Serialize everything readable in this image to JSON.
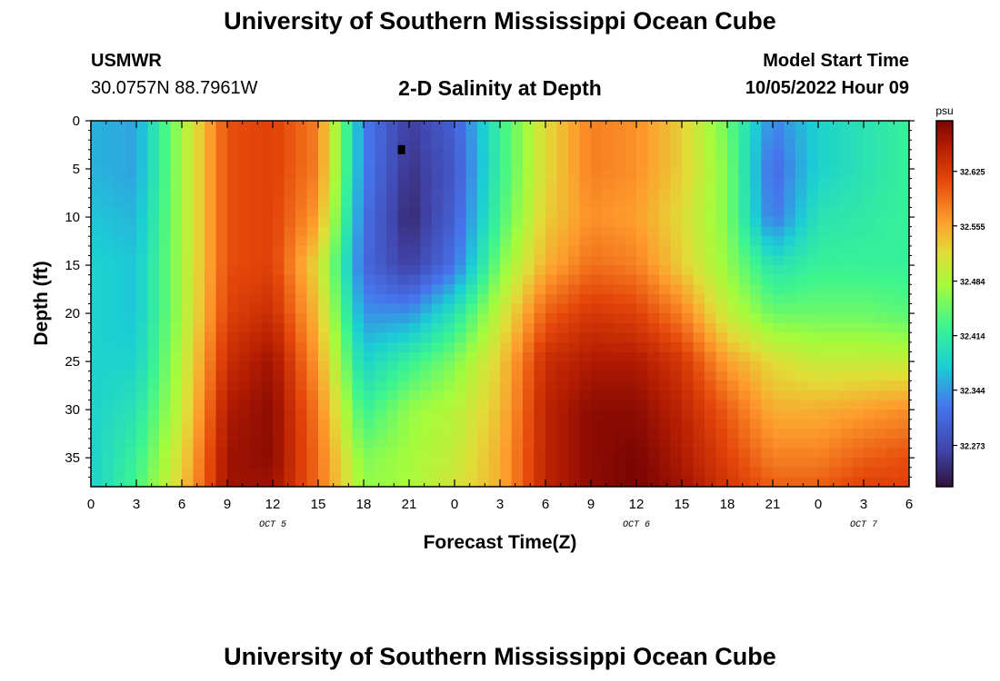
{
  "page": {
    "title": "University of Southern Mississippi Ocean Cube",
    "station": "USMWR",
    "coords": "30.0757N  88.7961W",
    "subtitle": "2-D Salinity at Depth",
    "start_label": "Model Start Time",
    "start_value": "10/05/2022 Hour 09",
    "bottom_title": "University of Southern Mississippi Ocean Cube"
  },
  "chart_data": {
    "type": "heatmap",
    "title": "2-D Salinity at Depth",
    "xlabel": "Forecast Time(Z)",
    "ylabel": "Depth (ft)",
    "x_tick_labels": [
      "0",
      "3",
      "6",
      "9",
      "12",
      "15",
      "18",
      "21",
      "0",
      "3",
      "6",
      "9",
      "12",
      "15",
      "18",
      "21",
      "0",
      "3",
      "6"
    ],
    "x_hours": [
      0,
      3,
      6,
      9,
      12,
      15,
      18,
      21,
      24,
      27,
      30,
      33,
      36,
      39,
      42,
      45,
      48,
      51,
      54
    ],
    "xlim": [
      0,
      54
    ],
    "day_labels": [
      {
        "label": "OCT 5",
        "hour": 12
      },
      {
        "label": "OCT 6",
        "hour": 36
      },
      {
        "label": "OCT 7",
        "hour": 51
      }
    ],
    "y_ticks": [
      0,
      5,
      10,
      15,
      20,
      25,
      30,
      35
    ],
    "ylim": [
      0,
      38
    ],
    "y_inverted": true,
    "colorbar": {
      "unit": "psu",
      "ticks": [
        32.273,
        32.344,
        32.414,
        32.484,
        32.555,
        32.625
      ],
      "range": [
        32.22,
        32.69
      ]
    },
    "marker": {
      "hour": 20.5,
      "depth": 3
    },
    "grid_hours": [
      0,
      3,
      6,
      9,
      12,
      15,
      18,
      21,
      24,
      27,
      30,
      33,
      36,
      39,
      42,
      45,
      48,
      51,
      54
    ],
    "grid_depths": [
      0,
      5,
      10,
      15,
      20,
      25,
      30,
      35,
      38
    ],
    "values": [
      [
        32.36,
        32.36,
        32.37,
        32.38,
        32.38,
        32.38,
        32.38,
        32.38,
        32.38
      ],
      [
        32.35,
        32.35,
        32.36,
        32.37,
        32.37,
        32.38,
        32.4,
        32.42,
        32.43
      ],
      [
        32.48,
        32.48,
        32.48,
        32.48,
        32.48,
        32.49,
        32.5,
        32.52,
        32.53
      ],
      [
        32.61,
        32.61,
        32.61,
        32.61,
        32.62,
        32.64,
        32.66,
        32.67,
        32.67
      ],
      [
        32.62,
        32.62,
        32.62,
        32.62,
        32.64,
        32.67,
        32.68,
        32.68,
        32.67
      ],
      [
        32.58,
        32.58,
        32.56,
        32.52,
        32.54,
        32.56,
        32.58,
        32.59,
        32.59
      ],
      [
        32.33,
        32.33,
        32.32,
        32.31,
        32.34,
        32.38,
        32.42,
        32.46,
        32.47
      ],
      [
        32.26,
        32.25,
        32.24,
        32.26,
        32.34,
        32.42,
        32.47,
        32.48,
        32.48
      ],
      [
        32.3,
        32.29,
        32.3,
        32.32,
        32.4,
        32.46,
        32.49,
        32.5,
        32.51
      ],
      [
        32.42,
        32.42,
        32.43,
        32.46,
        32.5,
        32.53,
        32.54,
        32.55,
        32.55
      ],
      [
        32.52,
        32.52,
        32.53,
        32.55,
        32.6,
        32.64,
        32.65,
        32.65,
        32.65
      ],
      [
        32.58,
        32.58,
        32.57,
        32.59,
        32.63,
        32.66,
        32.68,
        32.68,
        32.68
      ],
      [
        32.57,
        32.57,
        32.56,
        32.58,
        32.62,
        32.66,
        32.68,
        32.69,
        32.69
      ],
      [
        32.53,
        32.53,
        32.52,
        32.53,
        32.58,
        32.63,
        32.65,
        32.66,
        32.67
      ],
      [
        32.45,
        32.46,
        32.46,
        32.47,
        32.5,
        32.56,
        32.6,
        32.62,
        32.63
      ],
      [
        32.33,
        32.31,
        32.32,
        32.4,
        32.45,
        32.52,
        32.55,
        32.58,
        32.6
      ],
      [
        32.38,
        32.38,
        32.4,
        32.42,
        32.45,
        32.5,
        32.55,
        32.58,
        32.6
      ],
      [
        32.4,
        32.4,
        32.41,
        32.42,
        32.45,
        32.5,
        32.56,
        32.6,
        32.62
      ],
      [
        32.42,
        32.42,
        32.42,
        32.42,
        32.44,
        32.5,
        32.57,
        32.61,
        32.62
      ]
    ]
  }
}
